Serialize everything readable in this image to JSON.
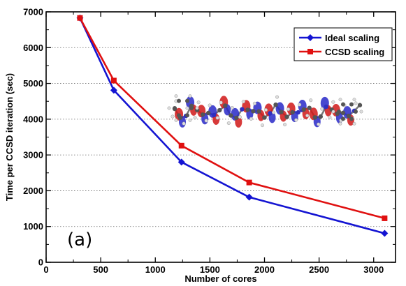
{
  "chart_data": {
    "type": "line",
    "title": "",
    "xlabel": "Number of cores",
    "ylabel": "Time per CCSD iteration (sec)",
    "xlim": [
      0,
      3200
    ],
    "ylim": [
      0,
      7000
    ],
    "x_ticks": [
      0,
      500,
      1000,
      1500,
      2000,
      2500,
      3000
    ],
    "y_ticks": [
      0,
      1000,
      2000,
      3000,
      4000,
      5000,
      6000,
      7000
    ],
    "grid": "horizontal dotted",
    "legend_position": "top-right",
    "annotation": "(a)",
    "series": [
      {
        "name": "Ideal scaling",
        "color": "#1414d2",
        "marker": "diamond",
        "x": [
          310,
          620,
          1240,
          1860,
          3100
        ],
        "y": [
          6830,
          4810,
          2800,
          1820,
          810
        ]
      },
      {
        "name": "CCSD scaling",
        "color": "#e01010",
        "marker": "square",
        "x": [
          310,
          620,
          1240,
          1860,
          3100
        ],
        "y": [
          6830,
          5080,
          3260,
          2230,
          1230
        ]
      }
    ]
  }
}
